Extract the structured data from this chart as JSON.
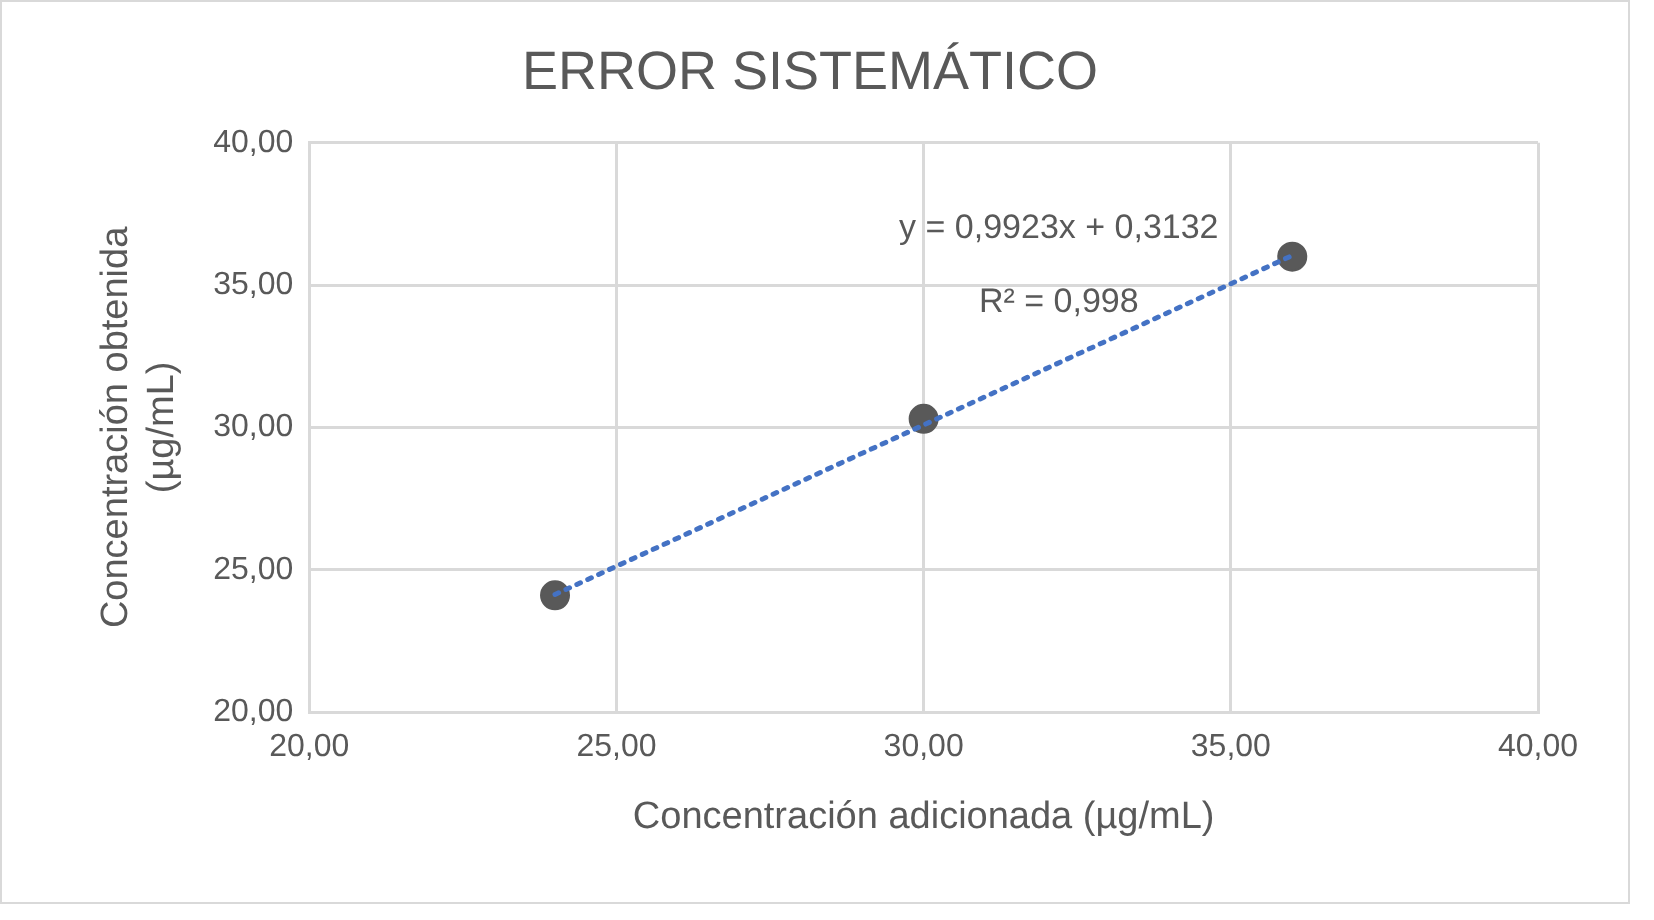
{
  "chart_data": {
    "type": "scatter",
    "title": "ERROR SISTEMÁTICO",
    "xlabel": "Concentración adicionada (µg/mL)",
    "ylabel": "Concentración obtenida (µg/mL)",
    "xlim": [
      20,
      40
    ],
    "ylim": [
      20,
      40
    ],
    "xticks": [
      {
        "value": 20,
        "label": "20,00"
      },
      {
        "value": 25,
        "label": "25,00"
      },
      {
        "value": 30,
        "label": "30,00"
      },
      {
        "value": 35,
        "label": "35,00"
      },
      {
        "value": 40,
        "label": "40,00"
      }
    ],
    "yticks": [
      {
        "value": 20,
        "label": "20,00"
      },
      {
        "value": 25,
        "label": "25,00"
      },
      {
        "value": 30,
        "label": "30,00"
      },
      {
        "value": 35,
        "label": "35,00"
      },
      {
        "value": 40,
        "label": "40,00"
      }
    ],
    "series": [
      {
        "color": "#595959",
        "marker": "circle",
        "x": [
          24,
          30,
          36
        ],
        "values": [
          24.1,
          30.3,
          36.0
        ]
      },
      {
        "type": "line",
        "color": "#4472c4",
        "line_style": "dotted",
        "marker": "none",
        "x": [
          24,
          36
        ],
        "values": [
          24.13,
          36.04
        ]
      }
    ],
    "annotations": [
      "y = 0,9923x + 0,3132",
      "R² = 0,998"
    ],
    "grid": true,
    "legend": false
  }
}
